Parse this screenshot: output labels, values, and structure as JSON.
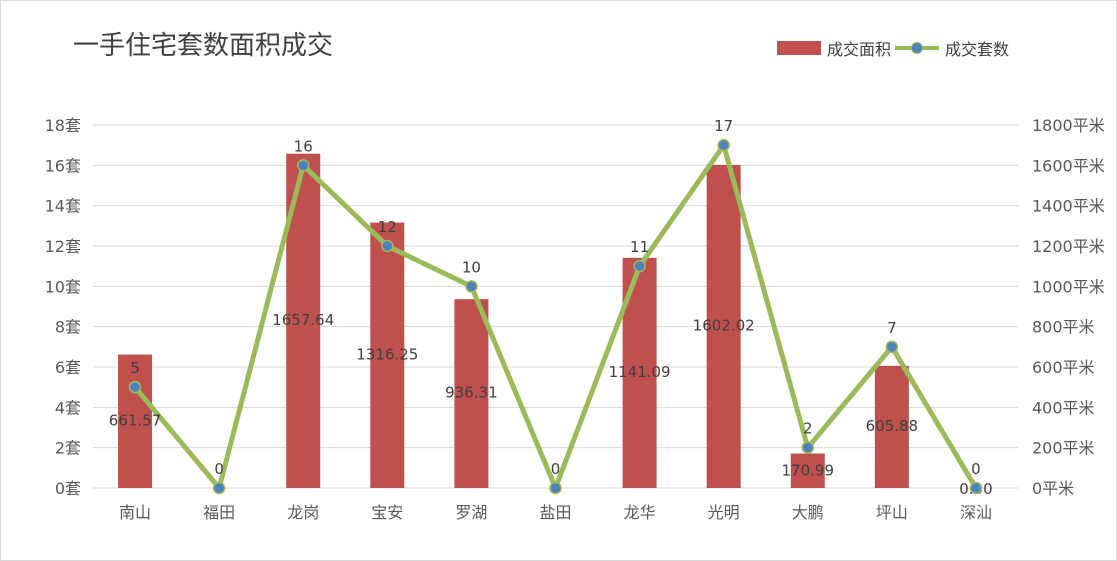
{
  "title": "一手住宅套数面积成交",
  "legend": {
    "bar_label": "成交面积",
    "line_label": "成交套数"
  },
  "colors": {
    "bar": "#c0504d",
    "line": "#9bbb59",
    "marker": "#4f81bd",
    "grid": "#d9d9d9",
    "text": "#595959"
  },
  "chart_data": {
    "type": "bar+line",
    "title": "一手住宅套数面积成交",
    "categories": [
      "南山",
      "福田",
      "龙岗",
      "宝安",
      "罗湖",
      "盐田",
      "龙华",
      "光明",
      "大鹏",
      "坪山",
      "深汕"
    ],
    "series": [
      {
        "name": "成交面积",
        "type": "bar",
        "axis": "right",
        "values": [
          661.57,
          0,
          1657.64,
          1316.25,
          936.31,
          0,
          1141.09,
          1602.02,
          170.99,
          605.88,
          0
        ],
        "labels": [
          "661.57",
          "",
          "1657.64",
          "1316.25",
          "936.31",
          "",
          "1141.09",
          "1602.02",
          "170.99",
          "605.88",
          "0.00"
        ]
      },
      {
        "name": "成交套数",
        "type": "line",
        "axis": "left",
        "values": [
          5,
          0,
          16,
          12,
          10,
          0,
          11,
          17,
          2,
          7,
          0
        ],
        "labels": [
          "5",
          "0",
          "16",
          "12",
          "10",
          "0",
          "11",
          "17",
          "2",
          "7",
          "0"
        ]
      }
    ],
    "left_axis": {
      "ylim": [
        0,
        18
      ],
      "ticks": [
        "0套",
        "2套",
        "4套",
        "6套",
        "8套",
        "10套",
        "12套",
        "14套",
        "16套",
        "18套"
      ]
    },
    "right_axis": {
      "ylim": [
        0,
        1800
      ],
      "ticks": [
        "0平米",
        "200平米",
        "400平米",
        "600平米",
        "800平米",
        "1000平米",
        "1200平米",
        "1400平米",
        "1600平米",
        "1800平米"
      ]
    },
    "grid": true,
    "legend_position": "top-right"
  }
}
